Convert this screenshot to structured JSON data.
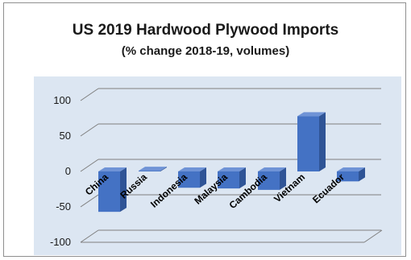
{
  "chart_data": {
    "type": "bar",
    "title": "US 2019 Hardwood Plywood Imports",
    "subtitle": "(% change 2018-19, volumes)",
    "categories": [
      "China",
      "Russia",
      "Indonesia",
      "Malaysia",
      "Cambodia",
      "Vietnam",
      "Ecuador"
    ],
    "values": [
      -57,
      1,
      -23,
      -24,
      -26,
      78,
      -14
    ],
    "ylim": [
      -100,
      100
    ],
    "yticks": [
      "100",
      "50",
      "0",
      "-50",
      "-100"
    ],
    "grid": true,
    "three_d": true,
    "colors": {
      "bar_front": "#4472c4",
      "bar_side": "#2f5496",
      "bar_top": "#6f93d6",
      "plot_bg": "#dce6f2",
      "grid": "#7f7f7f"
    }
  }
}
